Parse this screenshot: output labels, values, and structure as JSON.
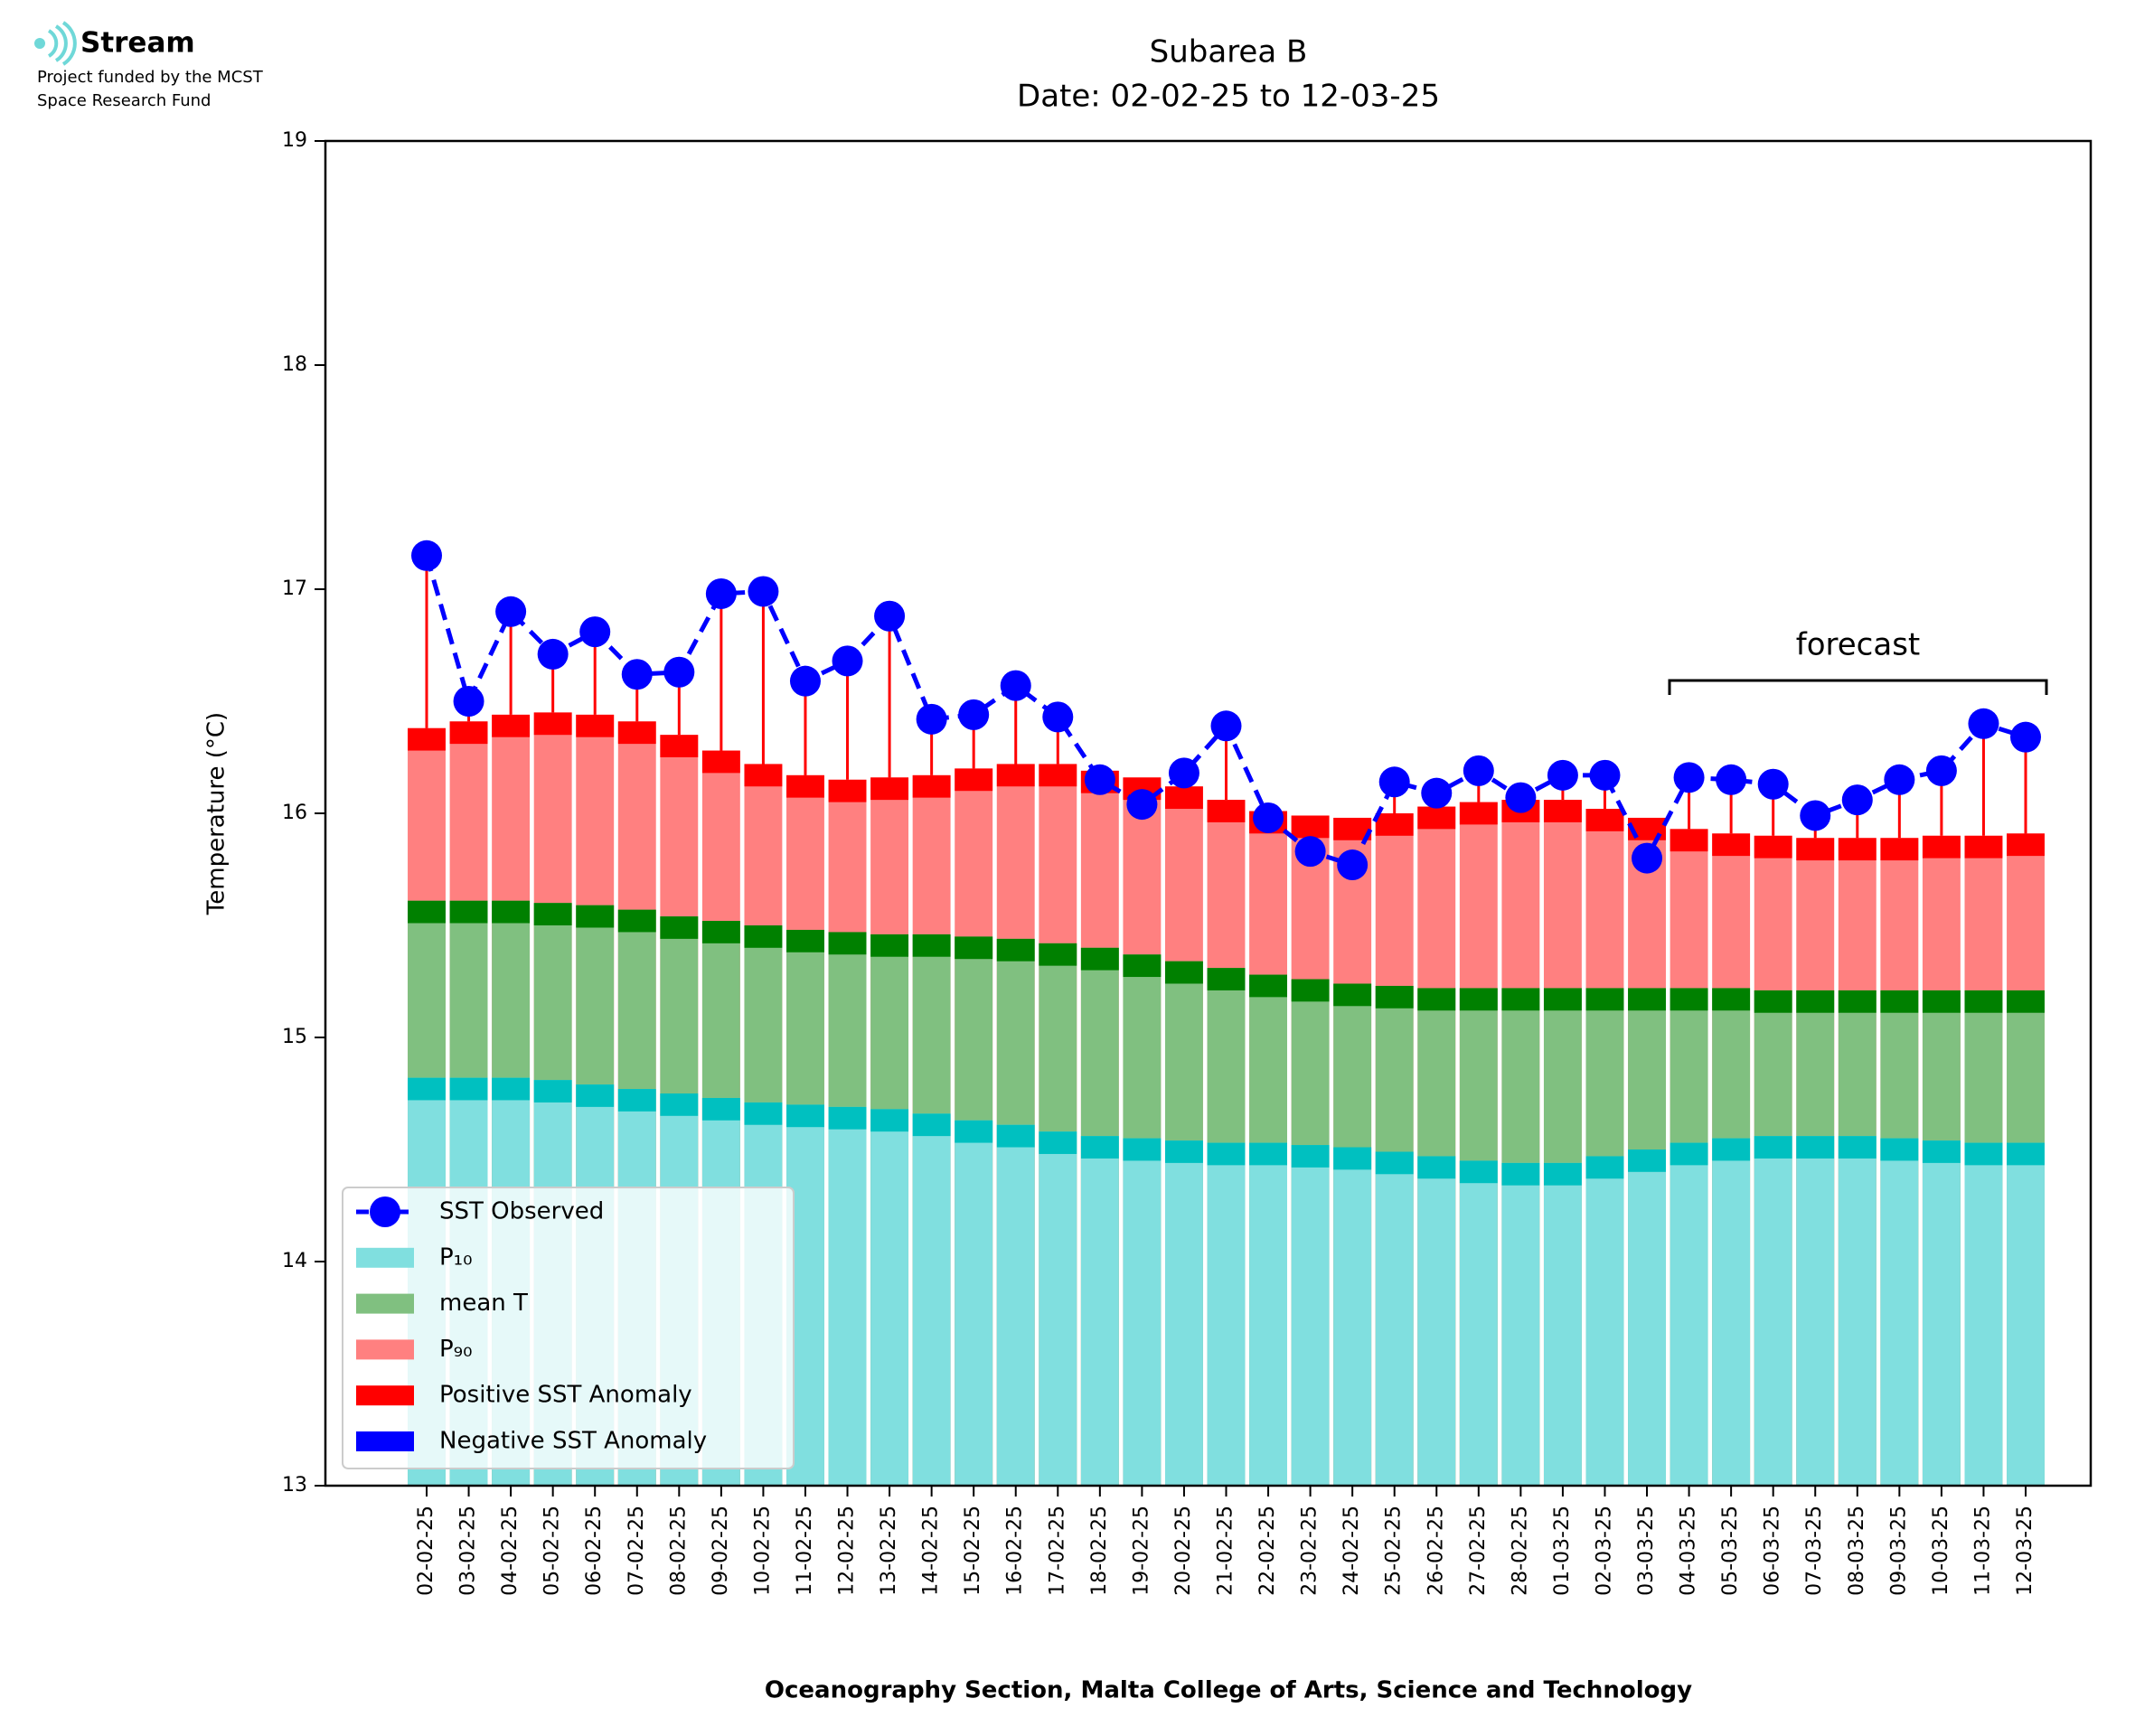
{
  "logo": {
    "name": "Stream",
    "lines": [
      "Project funded by the MCST",
      "Space Research Fund"
    ]
  },
  "chart_data": {
    "type": "bar",
    "title": [
      "Subarea B",
      "Date: 02-02-25 to 12-03-25"
    ],
    "xlabel": "Oceanography Section, Malta College of Arts, Science and Technology",
    "ylabel": "Temperature (°C)",
    "annotation": "forecast",
    "categories": [
      "02-02-25",
      "03-02-25",
      "04-02-25",
      "05-02-25",
      "06-02-25",
      "07-02-25",
      "08-02-25",
      "09-02-25",
      "10-02-25",
      "11-02-25",
      "12-02-25",
      "13-02-25",
      "14-02-25",
      "15-02-25",
      "16-02-25",
      "17-02-25",
      "18-02-25",
      "19-02-25",
      "20-02-25",
      "21-02-25",
      "22-02-25",
      "23-02-25",
      "24-02-25",
      "25-02-25",
      "26-02-25",
      "27-02-25",
      "28-02-25",
      "01-03-25",
      "02-03-25",
      "03-03-25",
      "04-03-25",
      "05-03-25",
      "06-03-25",
      "07-03-25",
      "08-03-25",
      "09-03-25",
      "10-03-25",
      "11-03-25",
      "12-03-25"
    ],
    "series": [
      {
        "name": "SST Observed",
        "color": "#0000ff",
        "values": [
          17.15,
          16.5,
          16.9,
          16.71,
          16.81,
          16.62,
          16.63,
          16.98,
          16.99,
          16.59,
          16.68,
          16.88,
          16.42,
          16.44,
          16.57,
          16.43,
          16.15,
          16.04,
          16.18,
          16.39,
          15.98,
          15.83,
          15.77,
          16.14,
          16.09,
          16.19,
          16.07,
          16.17,
          16.17,
          15.8,
          16.16,
          16.15,
          16.13,
          15.99,
          16.06,
          16.15,
          16.19,
          16.4,
          16.34
        ]
      },
      {
        "name": "P₁₀",
        "color": "#80dfdf",
        "band_color": "#00c0c0",
        "values": [
          14.82,
          14.82,
          14.82,
          14.81,
          14.79,
          14.77,
          14.75,
          14.73,
          14.71,
          14.7,
          14.69,
          14.68,
          14.66,
          14.63,
          14.61,
          14.58,
          14.56,
          14.55,
          14.54,
          14.53,
          14.53,
          14.52,
          14.51,
          14.49,
          14.47,
          14.45,
          14.44,
          14.44,
          14.47,
          14.5,
          14.53,
          14.55,
          14.56,
          14.56,
          14.56,
          14.55,
          14.54,
          14.53,
          14.53
        ]
      },
      {
        "name": "mean T",
        "color": "#80c080",
        "band_color": "#008000",
        "values": [
          15.61,
          15.61,
          15.61,
          15.6,
          15.59,
          15.57,
          15.54,
          15.52,
          15.5,
          15.48,
          15.47,
          15.46,
          15.46,
          15.45,
          15.44,
          15.42,
          15.4,
          15.37,
          15.34,
          15.31,
          15.28,
          15.26,
          15.24,
          15.23,
          15.22,
          15.22,
          15.22,
          15.22,
          15.22,
          15.22,
          15.22,
          15.22,
          15.21,
          15.21,
          15.21,
          15.21,
          15.21,
          15.21,
          15.21
        ]
      },
      {
        "name": "P₉₀",
        "color": "#ff8080",
        "band_color": "#ff0000",
        "values": [
          16.38,
          16.41,
          16.44,
          16.45,
          16.44,
          16.41,
          16.35,
          16.28,
          16.22,
          16.17,
          16.15,
          16.16,
          16.17,
          16.2,
          16.22,
          16.22,
          16.19,
          16.16,
          16.12,
          16.06,
          16.01,
          15.99,
          15.98,
          16.0,
          16.03,
          16.05,
          16.06,
          16.06,
          16.02,
          15.98,
          15.93,
          15.91,
          15.9,
          15.89,
          15.89,
          15.89,
          15.9,
          15.9,
          15.91
        ]
      },
      {
        "name": "Positive SST Anomaly",
        "color": "#ff0000"
      },
      {
        "name": "Negative SST Anomaly",
        "color": "#0000ff"
      }
    ],
    "ylim": [
      13,
      19
    ],
    "yticks": [
      13,
      14,
      15,
      16,
      17,
      18,
      19
    ],
    "legend": "lower left"
  }
}
